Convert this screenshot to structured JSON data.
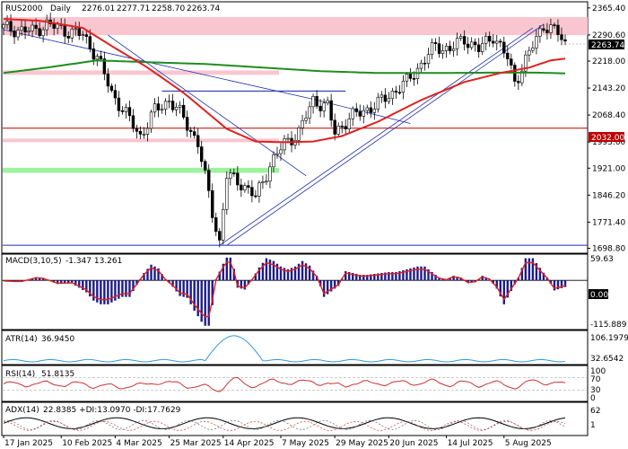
{
  "header": {
    "symbol": "RUS2000",
    "timeframe": "Daily",
    "open": "2276.01",
    "high": "2277.71",
    "low": "2258.70",
    "close": "2263.74"
  },
  "price_axis": {
    "ticks": [
      "2365.40",
      "2290.60",
      "2218.00",
      "2143.20",
      "2068.40",
      "1993.60",
      "1921.00",
      "1846.20",
      "1771.40",
      "1698.80"
    ],
    "current_label": "2263.74",
    "level_label": "2032.00"
  },
  "date_axis": [
    "17 Jan 2025",
    "10 Feb 2025",
    "4 Mar 2025",
    "25 Mar 2025",
    "14 Apr 2025",
    "7 May 2025",
    "29 May 2025",
    "20 Jun 2025",
    "14 Jul 2025",
    "5 Aug 2025"
  ],
  "indicators": {
    "macd": {
      "label": "MACD(3,10,5)",
      "values": "-1.347 13.261",
      "ticks": [
        "59.63",
        "0.00",
        "-115.889"
      ]
    },
    "atr": {
      "label": "ATR(14)",
      "values": "36.9450",
      "ticks": [
        "106.1979",
        "32.6542"
      ]
    },
    "rsi": {
      "label": "RSI(14)",
      "values": "51.8135",
      "ticks": [
        "100",
        "70",
        "30",
        "0"
      ]
    },
    "adx": {
      "label": "ADX(14)",
      "values": "22.8385 +DI:13.0970 -DI:17.7629",
      "ticks": [
        "62",
        "1"
      ]
    }
  },
  "colors": {
    "bull_candle": "#ffffff",
    "bear_candle": "#000000",
    "ma_fast": "#e02020",
    "ma_slow": "#1f8c1f",
    "resistance_zone": "#f9c6cf",
    "support_zone": "#9ef29e",
    "level_line": "#c00000",
    "trendline": "#1f2fb0",
    "macd_hist": "#1c1c8c",
    "atr_line": "#3399dd",
    "rsi_line": "#cc3333"
  },
  "chart_data": {
    "type": "candlestick",
    "symbol": "RUS2000",
    "timeframe": "Daily",
    "y_range": [
      1690,
      2375
    ],
    "date_labels": [
      "17 Jan 2025",
      "10 Feb 2025",
      "4 Mar 2025",
      "25 Mar 2025",
      "14 Apr 2025",
      "7 May 2025",
      "29 May 2025",
      "20 Jun 2025",
      "14 Jul 2025",
      "5 Aug 2025"
    ],
    "anchors": [
      [
        0,
        2310
      ],
      [
        8,
        2300
      ],
      [
        12,
        2320
      ],
      [
        18,
        2300
      ],
      [
        22,
        2290
      ],
      [
        26,
        2230
      ],
      [
        30,
        2130
      ],
      [
        34,
        2070
      ],
      [
        38,
        2010
      ],
      [
        42,
        2080
      ],
      [
        46,
        2110
      ],
      [
        50,
        2060
      ],
      [
        54,
        1990
      ],
      [
        58,
        1800
      ],
      [
        60,
        1715
      ],
      [
        62,
        1900
      ],
      [
        66,
        1880
      ],
      [
        70,
        1840
      ],
      [
        74,
        1930
      ],
      [
        78,
        1990
      ],
      [
        82,
        2020
      ],
      [
        86,
        2110
      ],
      [
        90,
        2090
      ],
      [
        92,
        2020
      ],
      [
        96,
        2060
      ],
      [
        100,
        2080
      ],
      [
        104,
        2100
      ],
      [
        108,
        2130
      ],
      [
        112,
        2160
      ],
      [
        116,
        2210
      ],
      [
        120,
        2260
      ],
      [
        124,
        2250
      ],
      [
        128,
        2280
      ],
      [
        132,
        2250
      ],
      [
        136,
        2290
      ],
      [
        140,
        2225
      ],
      [
        142,
        2160
      ],
      [
        144,
        2200
      ],
      [
        148,
        2280
      ],
      [
        150,
        2320
      ],
      [
        154,
        2295
      ],
      [
        156,
        2265
      ]
    ],
    "bars_count": 157,
    "moving_averages": {
      "fast_red": [
        [
          0,
          2335
        ],
        [
          10,
          2330
        ],
        [
          22,
          2310
        ],
        [
          30,
          2260
        ],
        [
          40,
          2200
        ],
        [
          50,
          2130
        ],
        [
          56,
          2080
        ],
        [
          62,
          2030
        ],
        [
          70,
          1995
        ],
        [
          78,
          1993
        ],
        [
          86,
          1995
        ],
        [
          94,
          2010
        ],
        [
          104,
          2050
        ],
        [
          116,
          2110
        ],
        [
          128,
          2160
        ],
        [
          138,
          2185
        ],
        [
          146,
          2200
        ],
        [
          152,
          2220
        ],
        [
          156,
          2225
        ]
      ],
      "slow_green": [
        [
          0,
          2185
        ],
        [
          12,
          2200
        ],
        [
          26,
          2220
        ],
        [
          40,
          2215
        ],
        [
          56,
          2210
        ],
        [
          72,
          2200
        ],
        [
          88,
          2190
        ],
        [
          104,
          2185
        ],
        [
          120,
          2185
        ],
        [
          136,
          2186
        ],
        [
          148,
          2186
        ],
        [
          156,
          2184
        ]
      ]
    },
    "zones": [
      {
        "y": [
          2290,
          2340
        ],
        "type": "resistance"
      },
      {
        "y": [
          2180,
          2192
        ],
        "type": "resistance"
      },
      {
        "y": [
          1993,
          2003
        ],
        "type": "resistance"
      },
      {
        "y": [
          1908,
          1922
        ],
        "type": "support"
      }
    ],
    "horizontal_levels": [
      2032,
      2135,
      1707
    ],
    "trendlines": [
      [
        [
          0,
          2305
        ],
        [
          87,
          2110
        ]
      ],
      [
        [
          87,
          2110
        ],
        [
          113,
          2045
        ]
      ],
      [
        [
          29,
          2290
        ],
        [
          84,
          1900
        ]
      ],
      [
        [
          44,
          2135
        ],
        [
          95,
          2135
        ]
      ],
      [
        [
          60,
          1707
        ],
        [
          147,
          2310
        ]
      ],
      [
        [
          62,
          1707
        ],
        [
          150,
          2320
        ]
      ]
    ],
    "macd": {
      "label": "MACD(3,10,5)",
      "value": -1.347,
      "signal": 13.261,
      "range": [
        -115.889,
        59.63
      ]
    },
    "atr": {
      "label": "ATR(14)",
      "value": 36.945,
      "range": [
        32.6542,
        106.1979
      ]
    },
    "rsi": {
      "label": "RSI(14)",
      "value": 51.8135,
      "levels": [
        30,
        70
      ],
      "range": [
        0,
        100
      ]
    },
    "adx": {
      "label": "ADX(14)",
      "adx": 22.8385,
      "plus_di": 13.097,
      "minus_di": 17.7629,
      "range": [
        1,
        62
      ]
    }
  }
}
